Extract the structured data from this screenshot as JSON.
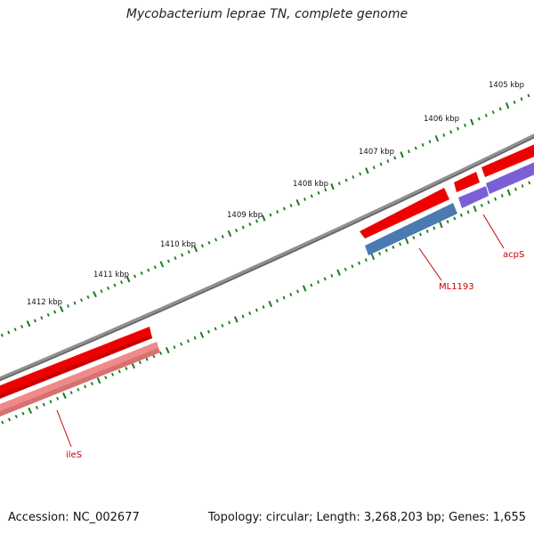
{
  "title": "Mycobacterium leprae TN, complete genome",
  "footer": {
    "accession": "Accession: NC_002677",
    "topology": "Topology: circular; Length: 3,268,203 bp; Genes: 1,655"
  },
  "colors": {
    "backbone": "#808080",
    "ruler": "#1a7a1a",
    "forward_cds": "#ee0000",
    "forward_cds_light": "#f08a8a",
    "reverse_cds_blue": "#4a7ab0",
    "reverse_cds_purple": "#7b5fd6",
    "gene_label": "#cc0000"
  },
  "ruler_labels": [
    "1405 kbp",
    "1406 kbp",
    "1407 kbp",
    "1408 kbp",
    "1409 kbp",
    "1410 kbp",
    "1411 kbp",
    "1412 kbp"
  ],
  "genes": [
    {
      "label": "ileS"
    },
    {
      "label": "ML1193"
    },
    {
      "label": "acpS"
    }
  ]
}
